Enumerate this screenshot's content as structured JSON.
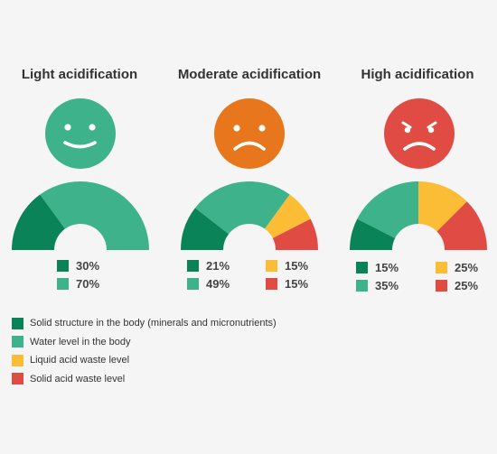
{
  "colors": {
    "solid": "#0b8358",
    "water": "#3eb28a",
    "liquid": "#fbbd36",
    "solidAcid": "#e04c44"
  },
  "legend": [
    {
      "key": "solid",
      "label": "Solid structure in the body (minerals and micronutrients)"
    },
    {
      "key": "water",
      "label": "Water level in the body"
    },
    {
      "key": "liquid",
      "label": "Liquid acid waste level"
    },
    {
      "key": "solidAcid",
      "label": "Solid acid waste level"
    }
  ],
  "chart_data": [
    {
      "type": "pie",
      "title": "Light acidification",
      "face": "happy-face-icon",
      "face_color": "#3eb28a",
      "series": [
        {
          "key": "solid",
          "value": 30,
          "label": "30%"
        },
        {
          "key": "water",
          "value": 70,
          "label": "70%"
        }
      ]
    },
    {
      "type": "pie",
      "title": "Moderate acidification",
      "face": "sad-face-icon",
      "face_color": "#e8761c",
      "series": [
        {
          "key": "solid",
          "value": 21,
          "label": "21%"
        },
        {
          "key": "water",
          "value": 49,
          "label": "49%"
        },
        {
          "key": "liquid",
          "value": 15,
          "label": "15%"
        },
        {
          "key": "solidAcid",
          "value": 15,
          "label": "15%"
        }
      ]
    },
    {
      "type": "pie",
      "title": "High acidification",
      "face": "angry-face-icon",
      "face_color": "#e04c44",
      "series": [
        {
          "key": "solid",
          "value": 15,
          "label": "15%"
        },
        {
          "key": "water",
          "value": 35,
          "label": "35%"
        },
        {
          "key": "liquid",
          "value": 25,
          "label": "25%"
        },
        {
          "key": "solidAcid",
          "value": 25,
          "label": "25%"
        }
      ]
    }
  ]
}
